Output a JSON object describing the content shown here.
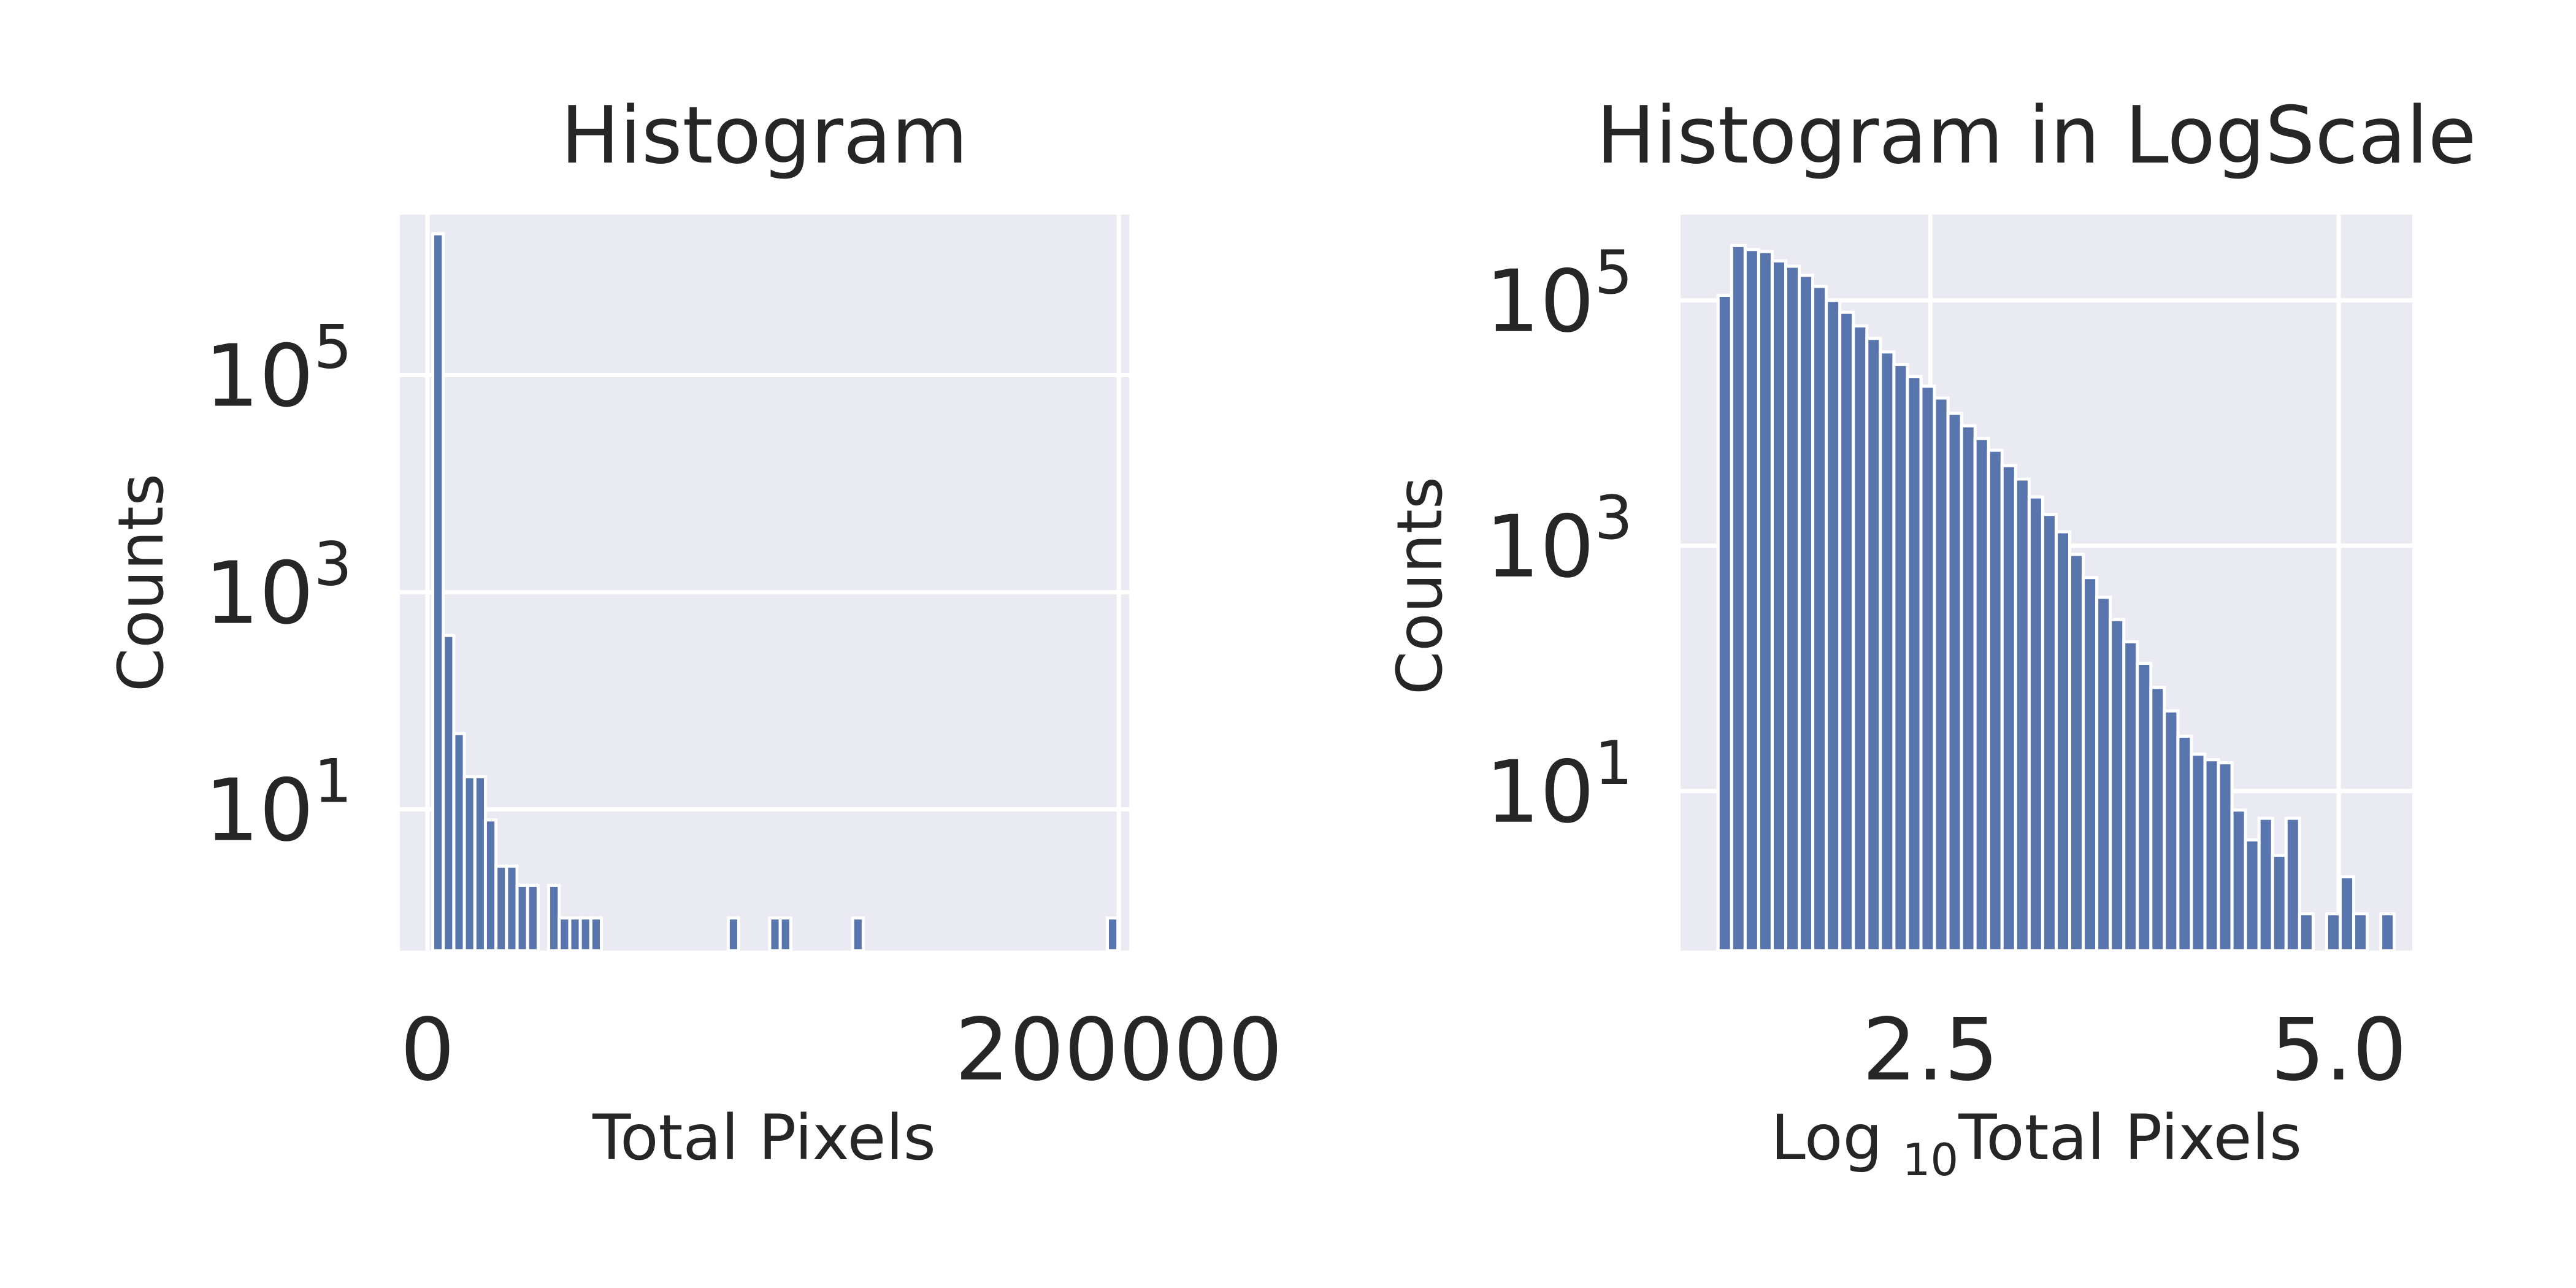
{
  "chart_data": [
    {
      "type": "bar",
      "title": "Histogram",
      "xlabel": "Total Pixels",
      "ylabel": "Counts",
      "y_scale": "log",
      "grid": true,
      "bar_color": "#5875ad",
      "background_color": "#eaeaf2",
      "xlim": [
        -8000,
        203000
      ],
      "ylim": [
        0.5,
        3000000
      ],
      "x_ticks": [
        {
          "value": 0,
          "label": "0"
        },
        {
          "value": 200000,
          "label": "200000"
        }
      ],
      "y_ticks": [
        {
          "value": 10,
          "base": "10",
          "exponent": "1"
        },
        {
          "value": 1000,
          "base": "10",
          "exponent": "3"
        },
        {
          "value": 100000,
          "base": "10",
          "exponent": "5"
        }
      ],
      "bin_width": 3050,
      "bins_start": [
        1500,
        4550,
        7600,
        10650,
        13700,
        16750,
        19800,
        22850,
        25900,
        28950,
        35050,
        38100,
        41150,
        44200,
        47250,
        87000,
        99000,
        102050,
        123000,
        196700
      ],
      "values": [
        2000000,
        400,
        50,
        20,
        20,
        8,
        3,
        3,
        2,
        2,
        2,
        1,
        1,
        1,
        1,
        1,
        1,
        1,
        1,
        1
      ]
    },
    {
      "type": "bar",
      "title": "Histogram in LogScale",
      "xlabel": "Log 10Total Pixels",
      "xlabel_main": "Log ",
      "xlabel_sub": "10",
      "xlabel_rest": "Total Pixels",
      "ylabel": "Counts",
      "y_scale": "log",
      "grid": true,
      "bar_color": "#5875ad",
      "background_color": "#eaeaf2",
      "xlim": [
        0.97,
        5.45
      ],
      "ylim": [
        0.5,
        500000
      ],
      "x_ticks": [
        {
          "value": 2.5,
          "label": "2.5"
        },
        {
          "value": 5.0,
          "label": "5.0"
        }
      ],
      "y_ticks": [
        {
          "value": 10,
          "base": "10",
          "exponent": "1"
        },
        {
          "value": 1000,
          "base": "10",
          "exponent": "3"
        },
        {
          "value": 100000,
          "base": "10",
          "exponent": "5"
        }
      ],
      "bin_start": 1.2,
      "bin_width": 0.0828,
      "values": [
        110000,
        280000,
        260000,
        250000,
        210000,
        190000,
        160000,
        130000,
        100000,
        80000,
        62000,
        49000,
        38000,
        30000,
        24000,
        20000,
        16000,
        12000,
        9500,
        7500,
        6000,
        4500,
        3500,
        2500,
        1800,
        1300,
        850,
        550,
        380,
        250,
        165,
        110,
        70,
        45,
        28,
        20,
        18,
        17,
        7,
        4,
        6,
        3,
        6,
        1,
        0,
        1,
        2,
        1,
        0,
        1
      ]
    }
  ]
}
